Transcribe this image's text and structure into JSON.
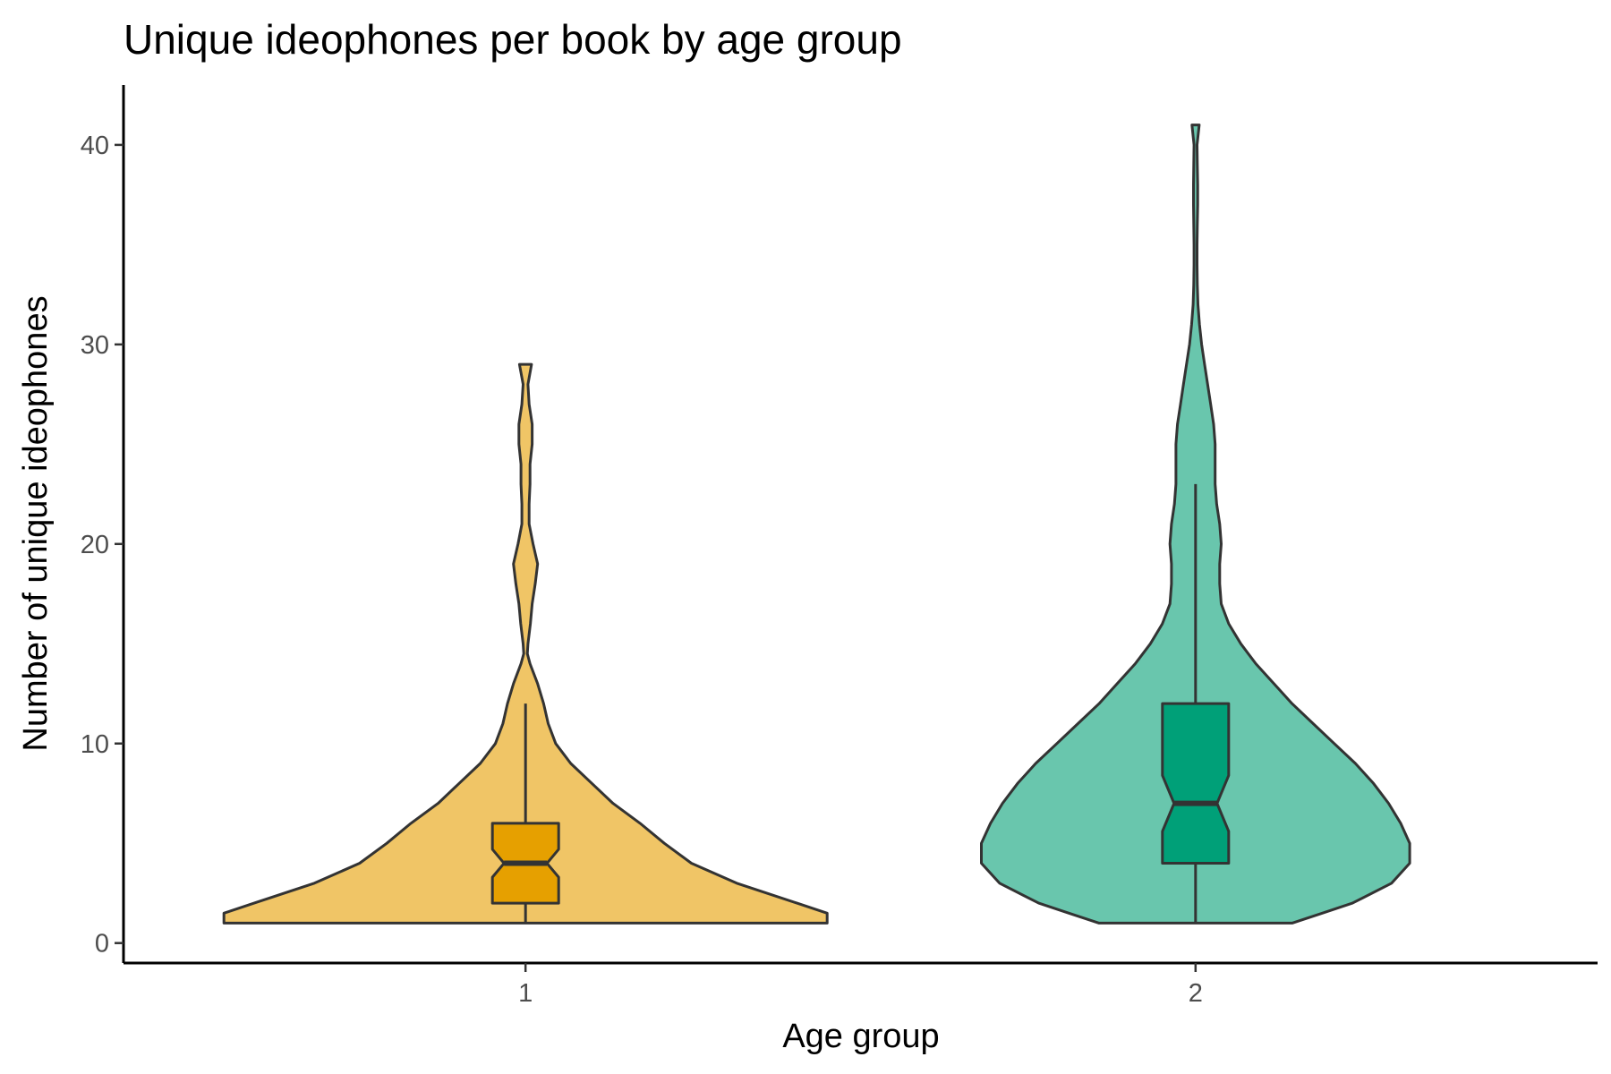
{
  "chart_data": {
    "type": "violin",
    "title": "Unique ideophones per book by age group",
    "xlabel": "Age group",
    "ylabel": "Number of unique ideophones",
    "categories": [
      "1",
      "2"
    ],
    "yticks": [
      0,
      10,
      20,
      30,
      40
    ],
    "ylim": [
      -1,
      43
    ],
    "grid": false,
    "legend": "none",
    "groups": [
      {
        "category": "1",
        "violin_color": "#f0c566",
        "box_color": "#e6a000",
        "range": [
          1,
          29
        ],
        "box": {
          "whisker_low": 1,
          "q1": 2,
          "median": 4,
          "q3": 6,
          "whisker_high": 12,
          "notch_low": 3.3,
          "notch_high": 4.7
        },
        "density": [
          [
            1,
            1.0
          ],
          [
            1.5,
            1.0
          ],
          [
            2,
            0.9
          ],
          [
            3,
            0.7
          ],
          [
            4,
            0.55
          ],
          [
            5,
            0.46
          ],
          [
            6,
            0.38
          ],
          [
            7,
            0.29
          ],
          [
            8,
            0.22
          ],
          [
            9,
            0.15
          ],
          [
            10,
            0.1
          ],
          [
            11,
            0.075
          ],
          [
            12,
            0.06
          ],
          [
            13,
            0.04
          ],
          [
            14,
            0.015
          ],
          [
            14.5,
            0.006
          ],
          [
            15,
            0.008
          ],
          [
            16,
            0.016
          ],
          [
            17,
            0.022
          ],
          [
            18,
            0.032
          ],
          [
            19,
            0.04
          ],
          [
            20,
            0.025
          ],
          [
            21,
            0.012
          ],
          [
            22,
            0.012
          ],
          [
            23,
            0.015
          ],
          [
            24,
            0.015
          ],
          [
            25,
            0.022
          ],
          [
            26,
            0.022
          ],
          [
            27,
            0.012
          ],
          [
            28,
            0.008
          ],
          [
            29,
            0.02
          ]
        ]
      },
      {
        "category": "2",
        "violin_color": "#69c6ad",
        "box_color": "#00a078",
        "range": [
          1,
          41
        ],
        "box": {
          "whisker_low": 1,
          "q1": 4,
          "median": 7,
          "q3": 12,
          "whisker_high": 23,
          "notch_low": 5.6,
          "notch_high": 8.4
        },
        "density": [
          [
            1,
            0.32
          ],
          [
            1.5,
            0.42
          ],
          [
            2,
            0.52
          ],
          [
            3,
            0.65
          ],
          [
            4,
            0.71
          ],
          [
            5,
            0.71
          ],
          [
            6,
            0.68
          ],
          [
            7,
            0.64
          ],
          [
            8,
            0.59
          ],
          [
            9,
            0.53
          ],
          [
            10,
            0.46
          ],
          [
            11,
            0.39
          ],
          [
            12,
            0.32
          ],
          [
            13,
            0.26
          ],
          [
            14,
            0.2
          ],
          [
            15,
            0.15
          ],
          [
            16,
            0.11
          ],
          [
            17,
            0.085
          ],
          [
            18,
            0.08
          ],
          [
            19,
            0.08
          ],
          [
            20,
            0.085
          ],
          [
            21,
            0.08
          ],
          [
            22,
            0.07
          ],
          [
            23,
            0.065
          ],
          [
            24,
            0.065
          ],
          [
            25,
            0.065
          ],
          [
            26,
            0.06
          ],
          [
            27,
            0.05
          ],
          [
            28,
            0.04
          ],
          [
            29,
            0.03
          ],
          [
            30,
            0.02
          ],
          [
            31,
            0.013
          ],
          [
            32,
            0.008
          ],
          [
            33,
            0.006
          ],
          [
            34,
            0.005
          ],
          [
            35,
            0.005
          ],
          [
            36,
            0.006
          ],
          [
            37,
            0.007
          ],
          [
            38,
            0.007
          ],
          [
            39,
            0.006
          ],
          [
            40,
            0.005
          ],
          [
            41,
            0.012
          ]
        ]
      }
    ]
  }
}
